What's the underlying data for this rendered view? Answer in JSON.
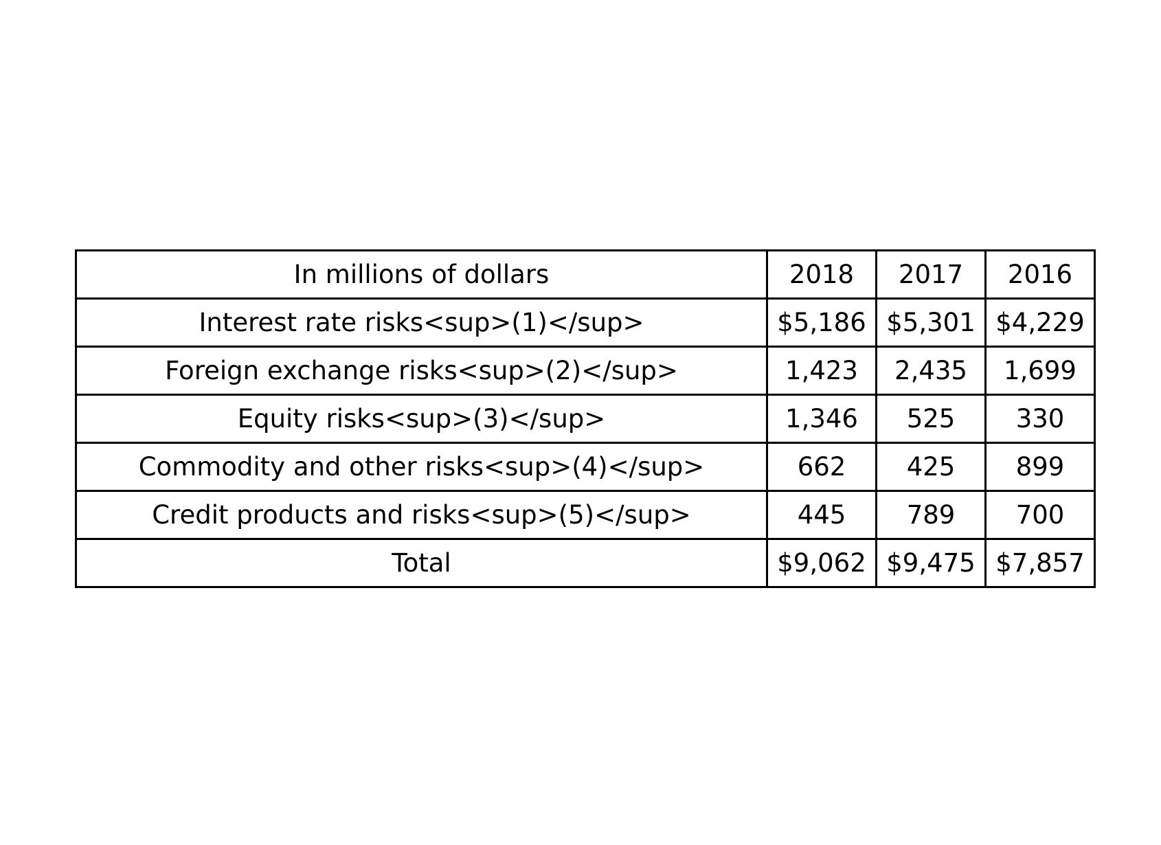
{
  "table": {
    "headers": [
      "In millions of dollars",
      "2018",
      "2017",
      "2016"
    ],
    "rows": [
      [
        "Interest rate risks<sup>(1)</sup>",
        "$5,186",
        "$5,301",
        "$4,229"
      ],
      [
        "Foreign exchange risks<sup>(2)</sup>",
        "1,423",
        "2,435",
        "1,699"
      ],
      [
        "Equity risks<sup>(3)</sup>",
        "1,346",
        "525",
        "330"
      ],
      [
        "Commodity and other risks<sup>(4)</sup>",
        "662",
        "425",
        "899"
      ],
      [
        "Credit products and risks<sup>(5)</sup>",
        "445",
        "789",
        "700"
      ],
      [
        "Total",
        "$9,062",
        "$9,475",
        "$7,857"
      ]
    ]
  }
}
